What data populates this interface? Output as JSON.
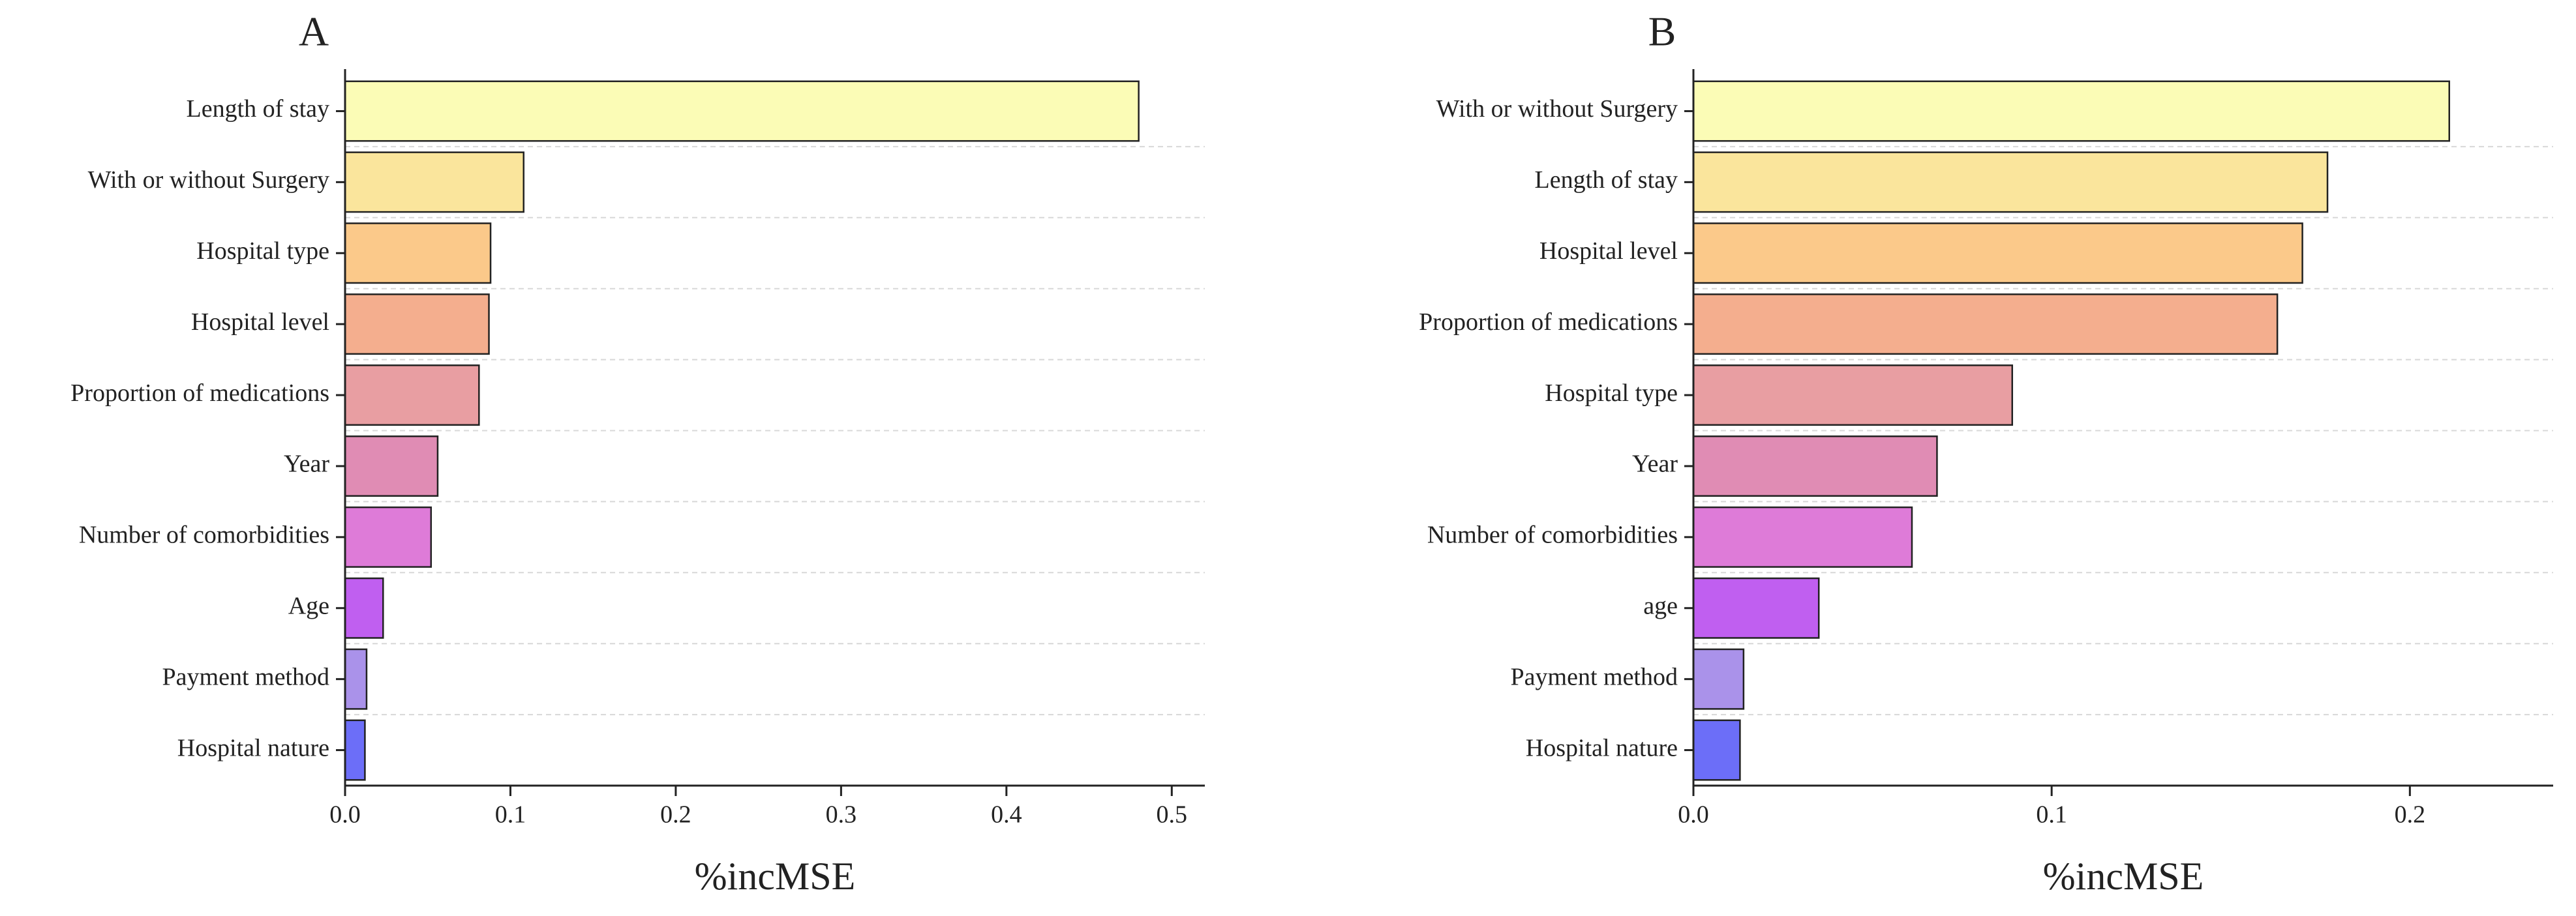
{
  "chart_data": [
    {
      "type": "hbar",
      "title": "A",
      "x_label": "%incMSE",
      "categories": [
        "Length of stay",
        "With or without Surgery",
        "Hospital type",
        "Hospital level",
        "Proportion of medications",
        "Year",
        "Number of comorbidities",
        "Age",
        "Payment method",
        "Hospital nature"
      ],
      "values": [
        0.48,
        0.108,
        0.088,
        0.087,
        0.081,
        0.056,
        0.052,
        0.023,
        0.013,
        0.012
      ],
      "colors": [
        "#fbfcb6",
        "#fae59c",
        "#fbc98a",
        "#f4ae8e",
        "#e89ea2",
        "#e08cb4",
        "#de7bd8",
        "#c05ff0",
        "#aa92ea",
        "#6c6ef8"
      ],
      "xlim": [
        0,
        0.52
      ],
      "xticks": [
        {
          "value": 0,
          "label": "0.0"
        },
        0.1,
        0.2,
        0.3,
        0.4,
        0.5
      ],
      "grid": true
    },
    {
      "type": "hbar",
      "title": "B",
      "x_label": "%incMSE",
      "categories": [
        "With or without Surgery",
        "Length of stay",
        "Hospital level",
        "Proportion of medications",
        "Hospital type",
        "Year",
        "Number of comorbidities",
        "age",
        "Payment method",
        "Hospital nature"
      ],
      "values": [
        0.211,
        0.177,
        0.17,
        0.163,
        0.089,
        0.068,
        0.061,
        0.035,
        0.014,
        0.013
      ],
      "colors": [
        "#fbfcb6",
        "#fae59c",
        "#fbc98a",
        "#f4ae8e",
        "#e89ea2",
        "#e08cb4",
        "#de7bd8",
        "#c05ff0",
        "#aa92ea",
        "#6c6ef8"
      ],
      "xlim": [
        0,
        0.24
      ],
      "xticks": [
        {
          "value": 0,
          "label": "0.0"
        },
        0.1,
        0.2
      ],
      "grid": true
    }
  ]
}
